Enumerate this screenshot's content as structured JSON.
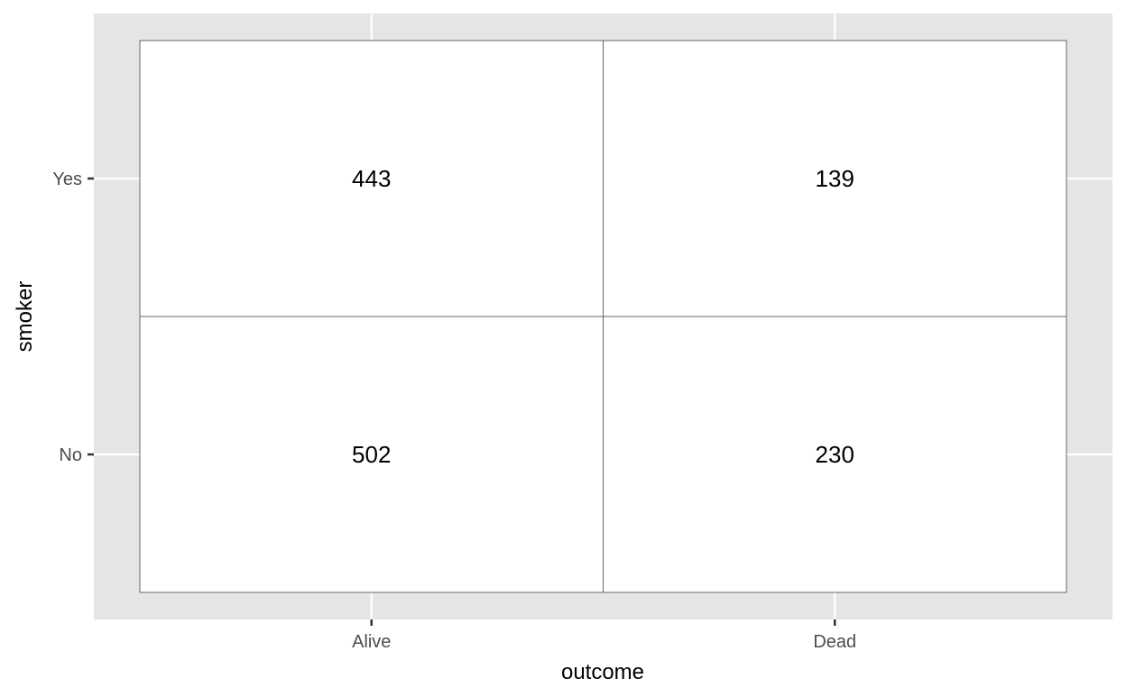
{
  "chart_data": {
    "type": "table",
    "title": "",
    "xlabel": "outcome",
    "ylabel": "smoker",
    "x_categories": [
      "Alive",
      "Dead"
    ],
    "y_categories": [
      "No",
      "Yes"
    ],
    "cells": [
      {
        "x": "Alive",
        "y": "Yes",
        "value": 443
      },
      {
        "x": "Dead",
        "y": "Yes",
        "value": 139
      },
      {
        "x": "Alive",
        "y": "No",
        "value": 502
      },
      {
        "x": "Dead",
        "y": "No",
        "value": 230
      }
    ],
    "grid": true,
    "panel_background": "#E5E5E5",
    "tile_fill": "#FFFFFF",
    "tile_border": "#666666",
    "gridline_color": "#FFFFFF",
    "text_color": "#000000",
    "axis_text_color": "#4D4D4D"
  }
}
